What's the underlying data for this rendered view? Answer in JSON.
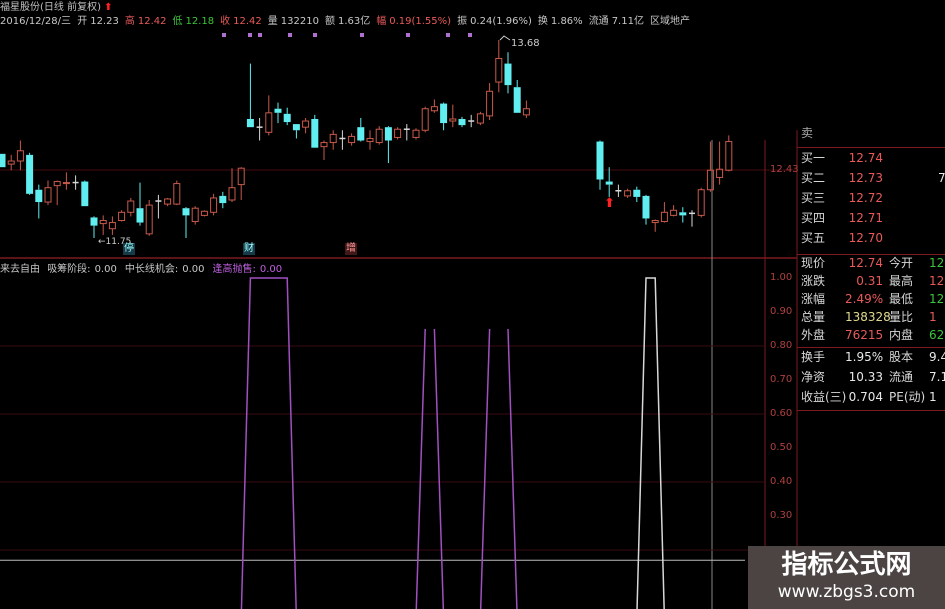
{
  "header": {
    "title": "福星股份(日线 前复权)",
    "date": "2016/12/28/三",
    "fields": [
      {
        "label": "开",
        "value": "12.23",
        "color": "#c8c8c8"
      },
      {
        "label": "高",
        "value": "12.42",
        "color": "#e85a5a"
      },
      {
        "label": "低",
        "value": "12.18",
        "color": "#3cc43c"
      },
      {
        "label": "收",
        "value": "12.42",
        "color": "#e85a5a"
      },
      {
        "label": "量",
        "value": "132210",
        "color": "#c8c8c8"
      },
      {
        "label": "额",
        "value": "1.63亿",
        "color": "#c8c8c8"
      },
      {
        "label": "幅",
        "value": "0.19(1.55%)",
        "color": "#e85a5a"
      },
      {
        "label": "振",
        "value": "0.24(1.96%)",
        "color": "#c8c8c8"
      },
      {
        "label": "换",
        "value": "1.86%",
        "color": "#c8c8c8"
      },
      {
        "label": "流通",
        "value": "7.11亿",
        "color": "#c8c8c8"
      }
    ],
    "sector": "区域地产"
  },
  "price_chart": {
    "high_label": "13.68",
    "low_label": "11.75",
    "axis_label": "12.43",
    "event_tags": [
      "停",
      "财",
      "增"
    ],
    "colors": {
      "up": "#c85a4a",
      "down": "#60eef0",
      "doji": "#d8d8d8",
      "grid": "#4a0c10",
      "marker": "#b070d0",
      "arrow": "#ff2020"
    }
  },
  "chart_data": {
    "type": "candlestick",
    "candles_ohlc": [
      [
        12.57,
        12.44,
        12.57,
        12.44
      ],
      [
        12.47,
        12.5,
        12.56,
        12.41
      ],
      [
        12.5,
        12.6,
        12.7,
        12.41
      ],
      [
        12.56,
        12.18,
        12.58,
        12.17
      ],
      [
        12.22,
        12.1,
        12.27,
        11.94
      ],
      [
        12.1,
        12.24,
        12.31,
        12.07
      ],
      [
        12.26,
        12.3,
        12.31,
        12.07
      ],
      [
        12.28,
        12.29,
        12.39,
        12.22
      ],
      [
        12.29,
        12.29,
        12.36,
        12.22
      ],
      [
        12.3,
        12.06,
        12.31,
        12.06
      ],
      [
        11.95,
        11.87,
        11.96,
        11.75
      ],
      [
        11.89,
        11.92,
        11.97,
        11.78
      ],
      [
        11.84,
        11.9,
        11.96,
        11.78
      ],
      [
        11.92,
        12.0,
        12.02,
        11.91
      ],
      [
        12.0,
        12.11,
        12.14,
        11.96
      ],
      [
        12.04,
        11.9,
        12.29,
        11.87
      ],
      [
        11.79,
        12.07,
        12.12,
        11.77
      ],
      [
        12.11,
        12.11,
        12.17,
        11.94
      ],
      [
        12.08,
        12.13,
        12.14,
        12.06
      ],
      [
        12.08,
        12.28,
        12.31,
        12.07
      ],
      [
        12.04,
        11.97,
        12.05,
        11.75
      ],
      [
        11.91,
        12.04,
        12.06,
        11.88
      ],
      [
        11.97,
        12.01,
        12.02,
        11.96
      ],
      [
        12.0,
        12.14,
        12.18,
        11.97
      ],
      [
        12.16,
        12.09,
        12.2,
        12.04
      ],
      [
        12.12,
        12.24,
        12.43,
        12.1
      ],
      [
        12.27,
        12.43,
        12.44,
        12.12
      ],
      [
        12.91,
        12.83,
        13.45,
        12.83
      ],
      [
        12.83,
        12.83,
        12.92,
        12.7
      ],
      [
        12.78,
        12.97,
        13.14,
        12.75
      ],
      [
        13.01,
        12.97,
        13.07,
        12.87
      ],
      [
        12.96,
        12.88,
        13.02,
        12.85
      ],
      [
        12.86,
        12.8,
        12.86,
        12.72
      ],
      [
        12.83,
        12.89,
        12.92,
        12.77
      ],
      [
        12.91,
        12.63,
        12.95,
        12.63
      ],
      [
        12.64,
        12.68,
        12.7,
        12.51
      ],
      [
        12.68,
        12.76,
        12.8,
        12.61
      ],
      [
        12.72,
        12.72,
        12.8,
        12.61
      ],
      [
        12.68,
        12.74,
        12.77,
        12.65
      ],
      [
        12.83,
        12.7,
        12.92,
        12.69
      ],
      [
        12.69,
        12.72,
        12.8,
        12.61
      ],
      [
        12.68,
        12.81,
        12.84,
        12.66
      ],
      [
        12.83,
        12.7,
        12.84,
        12.48
      ],
      [
        12.73,
        12.81,
        12.83,
        12.71
      ],
      [
        12.81,
        12.81,
        12.86,
        12.7
      ],
      [
        12.73,
        12.8,
        12.82,
        12.71
      ],
      [
        12.8,
        13.01,
        13.03,
        12.78
      ],
      [
        12.99,
        13.03,
        13.1,
        12.97
      ],
      [
        13.06,
        12.87,
        13.07,
        12.8
      ],
      [
        12.89,
        12.91,
        13.05,
        12.83
      ],
      [
        12.91,
        12.85,
        12.93,
        12.83
      ],
      [
        12.89,
        12.89,
        12.95,
        12.83
      ],
      [
        12.87,
        12.96,
        12.98,
        12.85
      ],
      [
        12.94,
        13.18,
        13.26,
        12.9
      ],
      [
        13.27,
        13.5,
        13.68,
        13.17
      ],
      [
        13.45,
        13.24,
        13.56,
        13.16
      ],
      [
        13.22,
        12.97,
        13.29,
        12.97
      ],
      [
        12.95,
        13.01,
        13.09,
        12.92
      ],
      null,
      null,
      null,
      null,
      null,
      null,
      null,
      [
        12.69,
        12.32,
        12.7,
        12.22
      ],
      [
        12.3,
        12.27,
        12.44,
        12.15
      ],
      [
        12.21,
        12.21,
        12.27,
        12.15
      ],
      [
        12.16,
        12.21,
        12.23,
        12.14
      ],
      [
        12.22,
        12.15,
        12.25,
        12.1
      ],
      [
        12.16,
        11.94,
        12.17,
        11.88
      ],
      [
        11.9,
        11.92,
        11.93,
        11.81
      ],
      [
        11.91,
        12.0,
        12.1,
        11.9
      ],
      [
        11.97,
        12.02,
        12.07,
        11.96
      ],
      [
        12.0,
        11.97,
        12.05,
        11.9
      ],
      [
        11.99,
        11.99,
        12.02,
        11.86
      ],
      [
        11.97,
        12.22,
        12.24,
        11.95
      ],
      [
        12.22,
        12.41,
        12.69,
        12.2
      ],
      [
        12.34,
        12.42,
        12.69,
        12.27
      ],
      [
        12.41,
        12.69,
        12.75,
        12.4
      ]
    ],
    "indicator": {
      "ylim": [
        0,
        1
      ],
      "yticks": [
        "1.00",
        "0.90",
        "0.80",
        "0.70",
        "0.60",
        "0.50",
        "0.40",
        "0.30"
      ],
      "purple_segments": [
        [
          [
            26,
            0
          ],
          [
            27,
            1
          ],
          [
            31,
            1
          ],
          [
            32,
            0
          ]
        ],
        [
          [
            45,
            0
          ],
          [
            46,
            0.85
          ]
        ],
        [
          [
            47,
            0.85
          ],
          [
            48,
            0
          ]
        ],
        [
          [
            52,
            0
          ],
          [
            53,
            0.85
          ]
        ],
        [
          [
            55,
            0.85
          ],
          [
            56,
            0
          ]
        ]
      ],
      "white_segments": [
        [
          [
            69,
            0
          ],
          [
            70,
            1
          ],
          [
            71,
            1
          ],
          [
            72,
            0
          ]
        ]
      ],
      "white_level": 0.17
    }
  },
  "indicator_header": {
    "name": "来去自由",
    "items": [
      {
        "label": "吸筹阶段:",
        "value": "0.00",
        "color": "#c8c8c8"
      },
      {
        "label": "中长线机会:",
        "value": "0.00",
        "color": "#c8c8c8"
      },
      {
        "label": "逢高抛售:",
        "value": "0.00",
        "color": "#c060e0"
      }
    ]
  },
  "quote_panel": {
    "bids": [
      {
        "label": "买一",
        "value": "12.74",
        "extra": ""
      },
      {
        "label": "买二",
        "value": "12.73",
        "extra": "7"
      },
      {
        "label": "买三",
        "value": "12.72",
        "extra": ""
      },
      {
        "label": "买四",
        "value": "12.71",
        "extra": ""
      },
      {
        "label": "买五",
        "value": "12.70",
        "extra": ""
      }
    ],
    "stats": [
      {
        "l1": "现价",
        "v1": "12.74",
        "c1": "red",
        "l2": "今开",
        "v2": "12",
        "c2": "green"
      },
      {
        "l1": "涨跌",
        "v1": "0.31",
        "c1": "red",
        "l2": "最高",
        "v2": "12",
        "c2": "red"
      },
      {
        "l1": "涨幅",
        "v1": "2.49%",
        "c1": "red",
        "l2": "最低",
        "v2": "12",
        "c2": "green"
      },
      {
        "l1": "总量",
        "v1": "138328",
        "c1": "yellow",
        "l2": "量比",
        "v2": "1",
        "c2": "red"
      },
      {
        "l1": "外盘",
        "v1": "76215",
        "c1": "red",
        "l2": "内盘",
        "v2": "62",
        "c2": "green"
      }
    ],
    "finance": [
      {
        "l1": "换手",
        "v1": "1.95%",
        "l2": "股本",
        "v2": "9.4"
      },
      {
        "l1": "净资",
        "v1": "10.33",
        "l2": "流通",
        "v2": "7.1"
      },
      {
        "l1": "收益(三)",
        "v1": "0.704",
        "l2": "PE(动)",
        "v2": "1"
      }
    ]
  },
  "watermark": {
    "name": "指标公式网",
    "url": "www.zbgs3.com"
  }
}
